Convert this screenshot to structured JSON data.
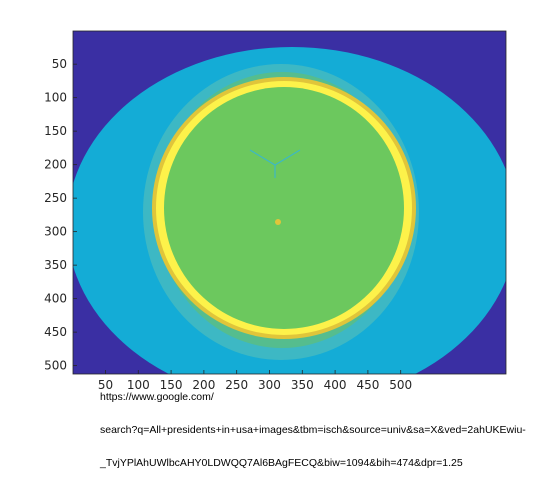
{
  "figure": {
    "colors": {
      "background": "#3a2fa3",
      "outer_field": "#14acd6",
      "mid_ring": "#3db8c4",
      "tissue": "#55bd8e",
      "brain": "#6cc85e",
      "skull_outer": "#e0c53a",
      "skull_core": "#fdf24a",
      "axes_edge": "#262626"
    },
    "y_ticks": [
      "50",
      "100",
      "150",
      "200",
      "250",
      "300",
      "350",
      "400",
      "450",
      "500"
    ],
    "x_ticks": [
      "50",
      "100",
      "150",
      "200",
      "250",
      "300",
      "350",
      "400",
      "450",
      "500"
    ]
  },
  "overlay": {
    "url_lines": [
      "https://www.google.com/",
      "search?q=All+presidents+in+usa+images&tbm=isch&source=univ&sa=X&ved=2ahUKEwiu-",
      "_TvjYPlAhUWlbcAHY0LDWQQ7Al6BAgFECQ&biw=1094&bih=474&dpr=1.25"
    ]
  }
}
